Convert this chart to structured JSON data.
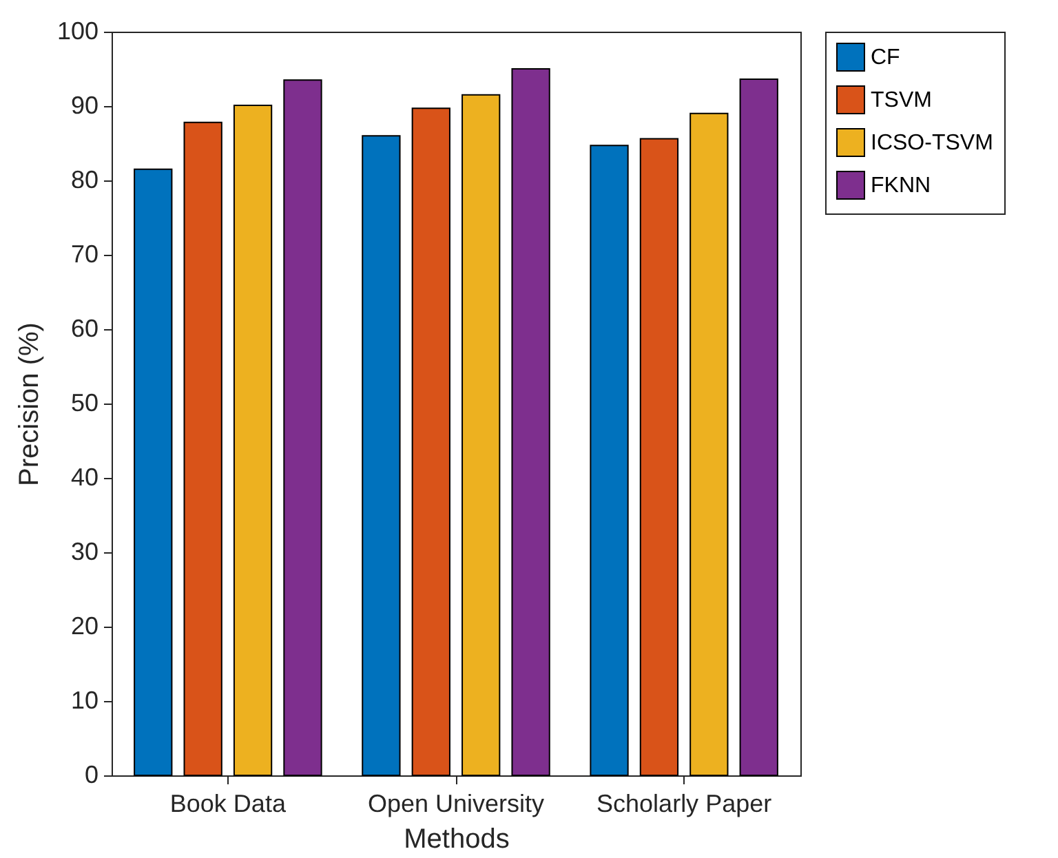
{
  "chart_data": {
    "type": "bar",
    "xlabel": "Methods",
    "ylabel": "Precision (%)",
    "categories": [
      "Book Data",
      "Open University",
      "Scholarly Paper"
    ],
    "series": [
      {
        "name": "CF",
        "color": "#0072bd",
        "values": [
          81.5,
          86.0,
          84.7
        ]
      },
      {
        "name": "TSVM",
        "color": "#d95319",
        "values": [
          87.8,
          89.7,
          85.6
        ]
      },
      {
        "name": "ICSO-TSVM",
        "color": "#edb120",
        "values": [
          90.1,
          91.5,
          89.0
        ]
      },
      {
        "name": "FKNN",
        "color": "#7e2f8e",
        "values": [
          93.5,
          95.0,
          93.6
        ]
      }
    ],
    "ylim": [
      0,
      100
    ],
    "yticks": [
      0,
      10,
      20,
      30,
      40,
      50,
      60,
      70,
      80,
      90,
      100
    ],
    "grid": false,
    "legend": "right"
  }
}
